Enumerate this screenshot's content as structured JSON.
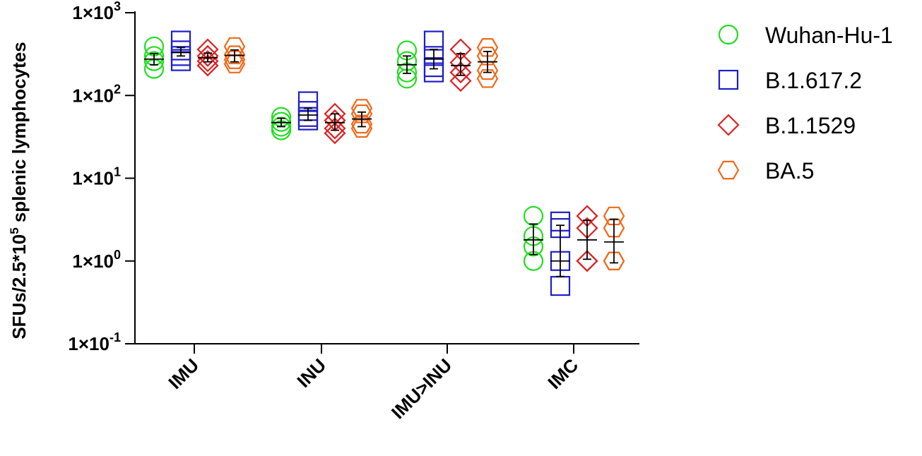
{
  "chart_data": {
    "type": "scatter",
    "y_scale": "log10",
    "ylim": [
      0.1,
      1000
    ],
    "ylabel": "SFUs/2.5*10⁵ splenic lymphocytes",
    "ylabel_main": "SFUs/2.5*10",
    "ylabel_sup": "5",
    "ylabel_tail": " splenic lymphocytes",
    "y_ticks": [
      {
        "value": 1000,
        "base": "1×10",
        "exp": "3"
      },
      {
        "value": 100,
        "base": "1×10",
        "exp": "2"
      },
      {
        "value": 10,
        "base": "1×10",
        "exp": "1"
      },
      {
        "value": 1,
        "base": "1×10",
        "exp": "0"
      },
      {
        "value": 0.1,
        "base": "1×10",
        "exp": "-1"
      }
    ],
    "categories": [
      "IMU",
      "INU",
      "IMU>INU",
      "IMC"
    ],
    "legend_position": "right",
    "series": [
      {
        "name": "Wuhan-Hu-1",
        "marker": "circle",
        "color": "#22dd22",
        "points": [
          [
            390,
            300,
            260,
            210
          ],
          [
            55,
            48,
            42,
            38
          ],
          [
            350,
            260,
            190,
            160
          ],
          [
            3.5,
            2.0,
            1.5,
            1.0
          ]
        ],
        "mean": [
          275,
          47,
          235,
          1.8
        ],
        "error": [
          [
            235,
            320
          ],
          [
            42,
            53
          ],
          [
            185,
            300
          ],
          [
            1.2,
            2.8
          ]
        ]
      },
      {
        "name": "B.1.617.2",
        "marker": "square",
        "color": "#1e1ec8",
        "points": [
          [
            460,
            350,
            300,
            260
          ],
          [
            85,
            65,
            55,
            50
          ],
          [
            460,
            300,
            220,
            190
          ],
          [
            3.0,
            2.5,
            1.0,
            0.5
          ]
        ],
        "mean": [
          330,
          58,
          275,
          1.0
        ],
        "error": [
          [
            300,
            380
          ],
          [
            50,
            70
          ],
          [
            210,
            360
          ],
          [
            0.65,
            2.7
          ]
        ]
      },
      {
        "name": "B.1.1529",
        "marker": "diamond",
        "color": "#dd2020",
        "points": [
          [
            360,
            300,
            260,
            230
          ],
          [
            60,
            50,
            40,
            35
          ],
          [
            360,
            250,
            190,
            150
          ],
          [
            3.5,
            2.5,
            1.0,
            1.0
          ]
        ],
        "mean": [
          285,
          47,
          230,
          1.8
        ],
        "error": [
          [
            255,
            325
          ],
          [
            38,
            60
          ],
          [
            175,
            320
          ],
          [
            1.05,
            3.1
          ]
        ]
      },
      {
        "name": "BA.5",
        "marker": "hexagon",
        "color": "#ee6a1a",
        "points": [
          [
            390,
            310,
            270,
            240
          ],
          [
            70,
            60,
            45,
            40
          ],
          [
            380,
            300,
            200,
            160
          ],
          [
            3.5,
            2.5,
            1.0,
            1.0
          ]
        ],
        "mean": [
          305,
          52,
          255,
          1.7
        ],
        "error": [
          [
            255,
            355
          ],
          [
            42,
            63
          ],
          [
            190,
            340
          ],
          [
            0.95,
            3.2
          ]
        ]
      }
    ]
  }
}
